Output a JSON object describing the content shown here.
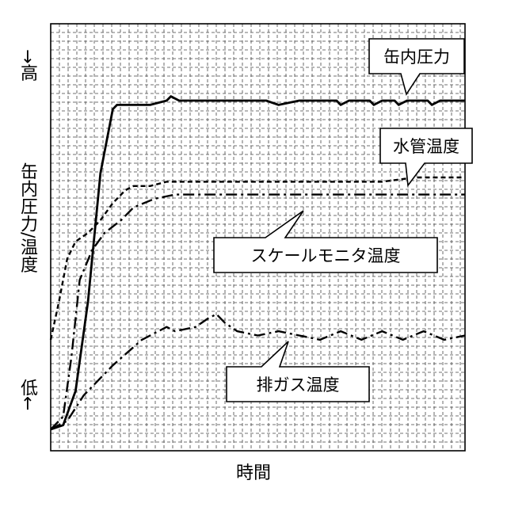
{
  "chart_data": {
    "type": "line",
    "title": "",
    "xlabel": "時間",
    "ylabel": "缶内圧力/温度",
    "ylabel_high": "→高",
    "ylabel_low": "低←",
    "xlim": [
      0,
      100
    ],
    "ylim": [
      0,
      100
    ],
    "grid": true,
    "series": [
      {
        "name": "缶内圧力",
        "style": "solid-thick",
        "points": [
          [
            0,
            5
          ],
          [
            3,
            6
          ],
          [
            6,
            14
          ],
          [
            9,
            35
          ],
          [
            12,
            65
          ],
          [
            15,
            80
          ],
          [
            16,
            81
          ],
          [
            19,
            81
          ],
          [
            20,
            81
          ],
          [
            22,
            81
          ],
          [
            24,
            81
          ],
          [
            28,
            82
          ],
          [
            29,
            83
          ],
          [
            31,
            82
          ],
          [
            35,
            82
          ],
          [
            40,
            82
          ],
          [
            45,
            82
          ],
          [
            52,
            82
          ],
          [
            55,
            81
          ],
          [
            60,
            82
          ],
          [
            69,
            82
          ],
          [
            70,
            81
          ],
          [
            72,
            82
          ],
          [
            77,
            82
          ],
          [
            78,
            81
          ],
          [
            80,
            82
          ],
          [
            83,
            82
          ],
          [
            84,
            81
          ],
          [
            86,
            82
          ],
          [
            91,
            82
          ],
          [
            92,
            81
          ],
          [
            94,
            82
          ],
          [
            97,
            82
          ],
          [
            100,
            82
          ]
        ]
      },
      {
        "name": "水管温度",
        "style": "dashed",
        "points": [
          [
            0,
            26
          ],
          [
            2,
            35
          ],
          [
            4,
            45
          ],
          [
            6,
            49
          ],
          [
            9,
            51
          ],
          [
            12,
            54
          ],
          [
            15,
            58
          ],
          [
            18,
            61
          ],
          [
            20,
            62
          ],
          [
            24,
            62
          ],
          [
            28,
            63
          ],
          [
            35,
            63
          ],
          [
            45,
            63
          ],
          [
            55,
            63
          ],
          [
            63,
            63
          ],
          [
            70,
            63
          ],
          [
            80,
            63
          ],
          [
            88,
            64
          ],
          [
            100,
            64
          ]
        ]
      },
      {
        "name": "スケールモニタ温度",
        "style": "dash-dot",
        "points": [
          [
            0,
            5
          ],
          [
            3,
            8
          ],
          [
            5,
            22
          ],
          [
            7,
            40
          ],
          [
            10,
            47
          ],
          [
            13,
            51
          ],
          [
            17,
            54
          ],
          [
            20,
            57
          ],
          [
            25,
            59
          ],
          [
            30,
            60
          ],
          [
            40,
            60
          ],
          [
            50,
            60
          ],
          [
            60,
            60
          ],
          [
            70,
            60
          ],
          [
            80,
            60
          ],
          [
            90,
            60
          ],
          [
            100,
            60
          ]
        ]
      },
      {
        "name": "排ガス温度",
        "style": "dash-dot",
        "points": [
          [
            0,
            5
          ],
          [
            4,
            7
          ],
          [
            8,
            13
          ],
          [
            15,
            20
          ],
          [
            22,
            26
          ],
          [
            26,
            28
          ],
          [
            28,
            29
          ],
          [
            30,
            28
          ],
          [
            35,
            29
          ],
          [
            38,
            31
          ],
          [
            40,
            32
          ],
          [
            42,
            30
          ],
          [
            45,
            28
          ],
          [
            50,
            27
          ],
          [
            55,
            28
          ],
          [
            60,
            27
          ],
          [
            65,
            26
          ],
          [
            70,
            28
          ],
          [
            75,
            26
          ],
          [
            80,
            28
          ],
          [
            85,
            26
          ],
          [
            90,
            28
          ],
          [
            95,
            26
          ],
          [
            100,
            27
          ]
        ]
      }
    ],
    "callouts": [
      {
        "series": "缶内圧力",
        "label": "缶内圧力"
      },
      {
        "series": "水管温度",
        "label": "水管温度"
      },
      {
        "series": "スケールモニタ温度",
        "label": "スケールモニタ温度"
      },
      {
        "series": "排ガス温度",
        "label": "排ガス温度"
      }
    ]
  }
}
